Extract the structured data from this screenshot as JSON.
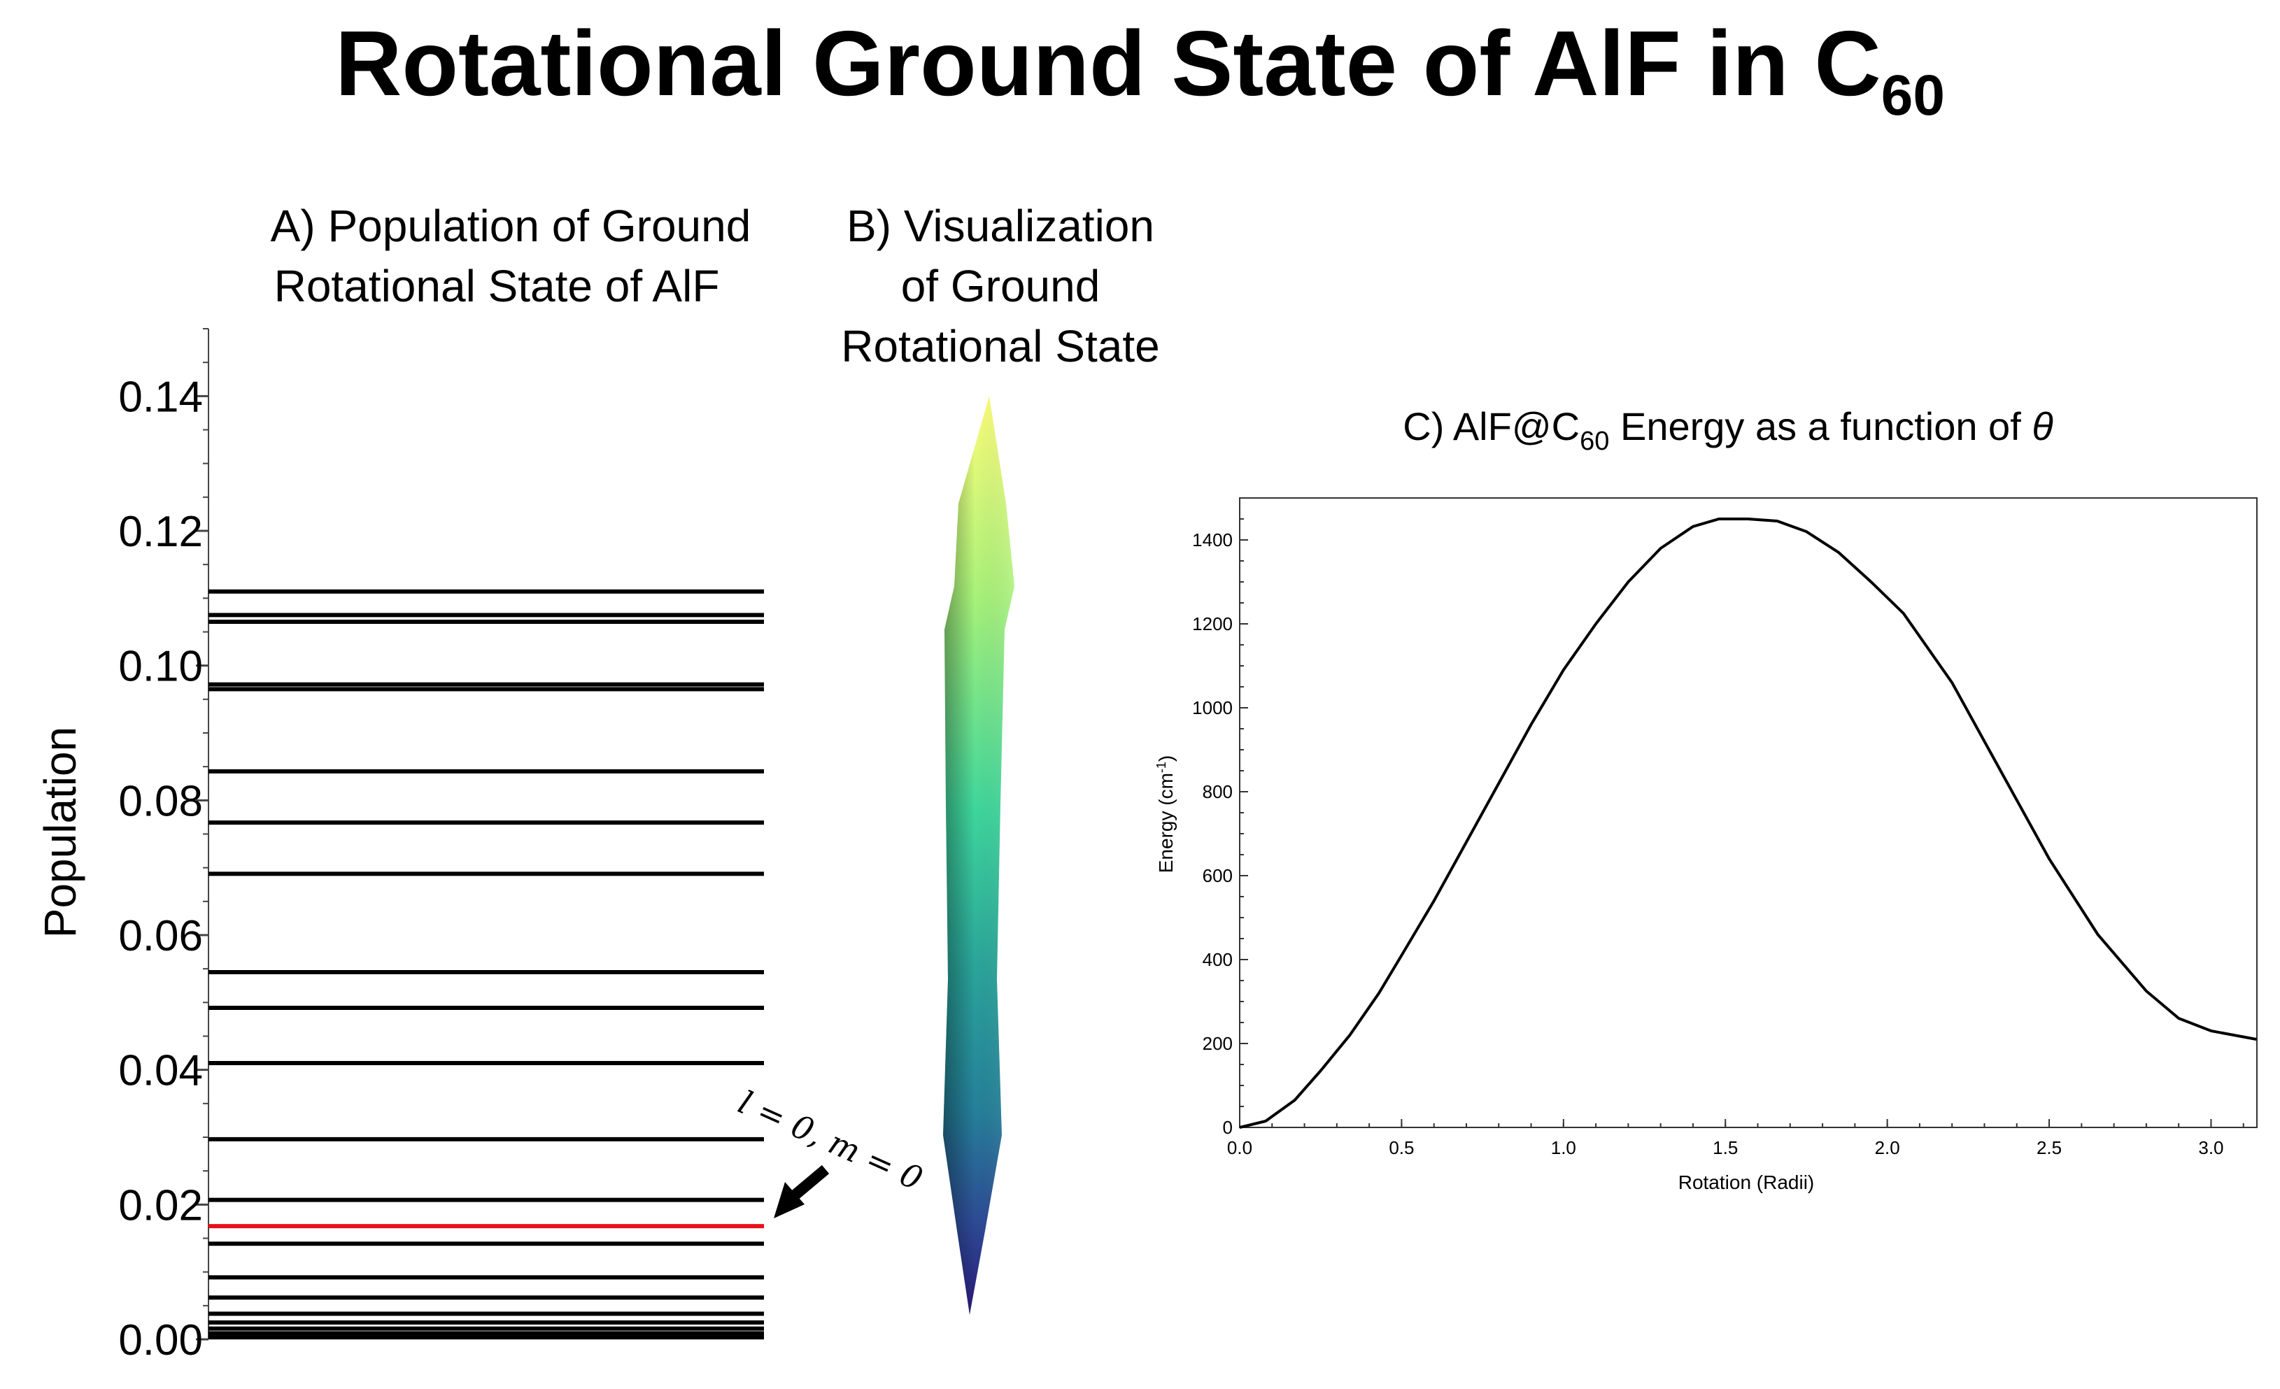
{
  "figure": {
    "title_main": "Rotational Ground State of AlF in C",
    "title_sub": "60"
  },
  "panel_a": {
    "title_line1": "A)   Population of Ground",
    "title_line2": "Rotational State of AlF",
    "annotation": "l = 0, m = 0",
    "colors": {
      "level": "#000000",
      "highlight": "#e8101a"
    }
  },
  "panel_b": {
    "title_line1": "B) Visualization",
    "title_line2": "of Ground",
    "title_line3": "Rotational State"
  },
  "panel_c": {
    "title_pre": "C) AlF@C",
    "title_sub": "60",
    "title_post": " Energy as a function of ",
    "title_symbol": "θ"
  },
  "chart_data": [
    {
      "type": "line",
      "panel": "A",
      "ylabel": "Population",
      "ylim": [
        0,
        0.15
      ],
      "yticks": [
        0.0,
        0.02,
        0.04,
        0.06,
        0.08,
        0.1,
        0.12,
        0.14
      ],
      "ytick_labels": [
        "0.00",
        "0.02",
        "0.04",
        "0.06",
        "0.08",
        "0.10",
        "0.12",
        "0.14"
      ],
      "levels": [
        0.111,
        0.1075,
        0.1065,
        0.0972,
        0.0965,
        0.0843,
        0.0767,
        0.0691,
        0.0545,
        0.0492,
        0.041,
        0.0297,
        0.0207,
        0.0142,
        0.0092,
        0.0062,
        0.0038,
        0.0025,
        0.0016,
        0.0009,
        0.0003
      ],
      "highlight_level": 0.0168
    },
    {
      "type": "line",
      "panel": "C",
      "xlabel": "Rotation (Radii)",
      "ylabel_pre": "Energy (cm",
      "ylabel_sup": "-1",
      "ylabel_post": ")",
      "xlim": [
        0,
        3.1416
      ],
      "ylim": [
        0,
        1500
      ],
      "xticks": [
        0.0,
        0.5,
        1.0,
        1.5,
        2.0,
        2.5,
        3.0
      ],
      "xtick_labels": [
        "0.0",
        "0.5",
        "1.0",
        "1.5",
        "2.0",
        "2.5",
        "3.0"
      ],
      "yticks": [
        0,
        200,
        400,
        600,
        800,
        1000,
        1200,
        1400
      ],
      "ytick_labels": [
        "0",
        "200",
        "400",
        "600",
        "800",
        "1000",
        "1200",
        "1400"
      ],
      "x": [
        0.0,
        0.08,
        0.17,
        0.25,
        0.34,
        0.43,
        0.5,
        0.6,
        0.7,
        0.8,
        0.9,
        1.0,
        1.1,
        1.2,
        1.3,
        1.4,
        1.48,
        1.57,
        1.66,
        1.75,
        1.85,
        1.95,
        2.05,
        2.2,
        2.35,
        2.5,
        2.65,
        2.8,
        2.9,
        3.0,
        3.07,
        3.14
      ],
      "y": [
        0,
        15,
        65,
        135,
        220,
        320,
        410,
        540,
        680,
        820,
        960,
        1090,
        1200,
        1300,
        1380,
        1432,
        1450,
        1450,
        1445,
        1420,
        1370,
        1300,
        1225,
        1060,
        850,
        640,
        460,
        325,
        260,
        230,
        220,
        210
      ]
    }
  ]
}
